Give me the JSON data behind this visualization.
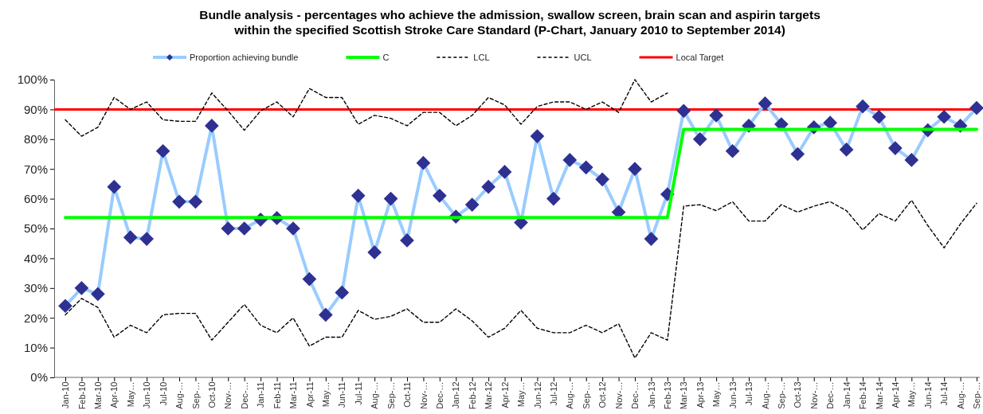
{
  "chart_data": {
    "type": "line",
    "title": "Bundle analysis - percentages who achieve the admission, swallow screen, brain scan and aspirin targets\nwithin the specified Scottish Stroke Care Standard (P-Chart, January 2010 to September 2014)",
    "categories": [
      "Jan-10",
      "Feb-10",
      "Mar-10",
      "Apr-10",
      "May…",
      "Jun-10",
      "Jul-10",
      "Aug-…",
      "Sep-…",
      "Oct-10",
      "Nov-…",
      "Dec-…",
      "Jan-11",
      "Feb-11",
      "Mar-11",
      "Apr-11",
      "May…",
      "Jun-11",
      "Jul-11",
      "Aug-…",
      "Sep-…",
      "Oct-11",
      "Nov-…",
      "Dec-…",
      "Jan-12",
      "Feb-12",
      "Mar-12",
      "Apr-12",
      "May…",
      "Jun-12",
      "Jul-12",
      "Aug-…",
      "Sep-…",
      "Oct-12",
      "Nov-…",
      "Dec-…",
      "Jan-13",
      "Feb-13",
      "Mar-13",
      "Apr-13",
      "May…",
      "Jun-13",
      "Jul-13",
      "Aug-…",
      "Sep-…",
      "Oct-13",
      "Nov-…",
      "Dec-…",
      "Jan-14",
      "Feb-14",
      "Mar-14",
      "Apr-14",
      "May…",
      "Jun-14",
      "Jul-14",
      "Aug-…",
      "Sep-…"
    ],
    "series": [
      {
        "name": "Proportion achieving bundle",
        "color": "#99ccff",
        "marker": "diamond",
        "values": [
          24,
          30,
          28,
          64,
          47,
          46.5,
          76,
          59,
          59,
          84.5,
          50,
          50,
          53,
          53.5,
          50,
          33,
          21,
          28.5,
          61,
          42,
          60,
          46,
          72,
          61,
          54,
          58,
          64,
          69,
          52,
          81,
          60,
          73,
          70.5,
          66.5,
          55.5,
          70,
          46.5,
          61.5,
          89.5,
          80,
          88,
          76,
          84.5,
          92,
          85,
          75,
          84,
          85.5,
          76.5,
          91,
          87.5,
          77,
          73,
          83,
          87.5,
          84.5,
          90.5
        ]
      },
      {
        "name": "C",
        "color": "#00ff00",
        "values": [
          53.7,
          53.7,
          53.7,
          53.7,
          53.7,
          53.7,
          53.7,
          53.7,
          53.7,
          53.7,
          53.7,
          53.7,
          53.7,
          53.7,
          53.7,
          53.7,
          53.7,
          53.7,
          53.7,
          53.7,
          53.7,
          53.7,
          53.7,
          53.7,
          53.7,
          53.7,
          53.7,
          53.7,
          53.7,
          53.7,
          53.7,
          53.7,
          53.7,
          53.7,
          53.7,
          53.7,
          53.7,
          53.7,
          83.3,
          83.3,
          83.3,
          83.3,
          83.3,
          83.3,
          83.3,
          83.3,
          83.3,
          83.3,
          83.3,
          83.3,
          83.3,
          83.3,
          83.3,
          83.3,
          83.3,
          83.3,
          83.3
        ]
      },
      {
        "name": "LCL",
        "color": "#000000",
        "line_style": "dashed",
        "values": [
          21,
          26.5,
          23.5,
          13.5,
          17.5,
          15,
          21,
          21.5,
          21.5,
          12.5,
          18.5,
          24.5,
          17.5,
          15,
          20,
          10.5,
          13.5,
          13.5,
          22.5,
          19.5,
          20.5,
          23,
          18.5,
          18.5,
          23,
          19,
          13.5,
          16.5,
          22.5,
          16.5,
          15,
          15,
          17.5,
          15,
          18,
          6.5,
          15,
          12.5,
          57.5,
          58,
          56,
          59,
          52.5,
          52.5,
          58,
          55.5,
          57.5,
          59,
          56,
          49.5,
          55,
          52.5,
          59.5,
          51,
          43.5,
          51.5,
          58.5
        ]
      },
      {
        "name": "UCL",
        "color": "#000000",
        "line_style": "dashed",
        "values": [
          86.5,
          81,
          84,
          94,
          90,
          92.5,
          86.5,
          86,
          86,
          95.5,
          89.5,
          83,
          89.5,
          92.5,
          87.5,
          97,
          94,
          94,
          85,
          88,
          87,
          84.5,
          89,
          89,
          84.5,
          88,
          94,
          91.5,
          85,
          91,
          92.5,
          92.5,
          90,
          92.5,
          89,
          100,
          92.5,
          95.5,
          null,
          null,
          null,
          null,
          null,
          null,
          null,
          null,
          null,
          null,
          null,
          null,
          null,
          null,
          null,
          null,
          null,
          null,
          null
        ]
      }
    ],
    "ref_lines": [
      {
        "axis": "y",
        "value": 90,
        "label": "Local Target",
        "color": "#ff0000"
      }
    ],
    "ylim": [
      0,
      100
    ],
    "yticks": [
      {
        "value": 0,
        "label": "0%"
      },
      {
        "value": 10,
        "label": "10%"
      },
      {
        "value": 20,
        "label": "20%"
      },
      {
        "value": 30,
        "label": "30%"
      },
      {
        "value": 40,
        "label": "40%"
      },
      {
        "value": 50,
        "label": "50%"
      },
      {
        "value": 60,
        "label": "60%"
      },
      {
        "value": 70,
        "label": "70%"
      },
      {
        "value": 80,
        "label": "80%"
      },
      {
        "value": 90,
        "label": "90%"
      },
      {
        "value": 100,
        "label": "100%"
      }
    ],
    "legend": "top",
    "grid": false
  }
}
